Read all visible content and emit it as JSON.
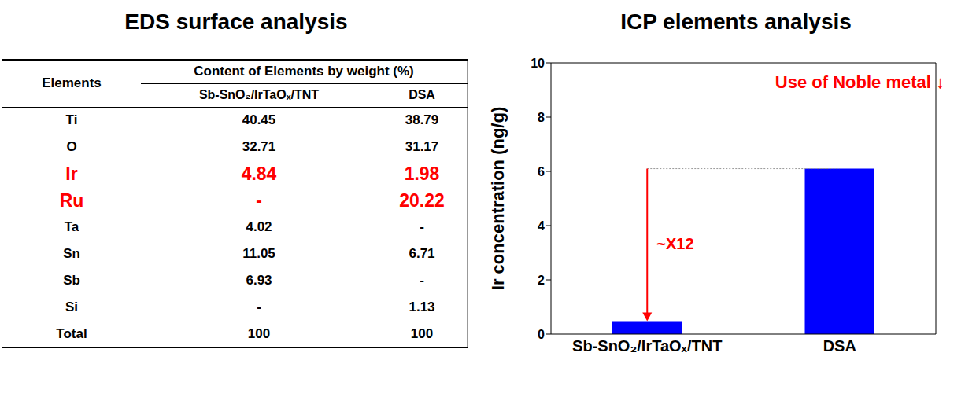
{
  "eds_table": {
    "title": "EDS surface analysis",
    "header": {
      "row_label": "Elements",
      "group": "Content of Elements by weight (%)",
      "columns": [
        "Sb-SnO₂/IrTaOₓ/TNT",
        "DSA"
      ]
    },
    "rows": [
      {
        "cells": [
          "Ti",
          "40.45",
          "38.79"
        ]
      },
      {
        "cells": [
          "O",
          "32.71",
          "31.17"
        ]
      },
      {
        "cells": [
          "Ir",
          "4.84",
          "1.98"
        ],
        "color": "#ff0000"
      },
      {
        "cells": [
          "Ru",
          "-",
          "20.22"
        ],
        "color": "#ff0000"
      },
      {
        "cells": [
          "Ta",
          "4.02",
          "-"
        ]
      },
      {
        "cells": [
          "Sn",
          "11.05",
          "6.71"
        ]
      },
      {
        "cells": [
          "Sb",
          "6.93",
          "-"
        ]
      },
      {
        "cells": [
          "Si",
          "-",
          "1.13"
        ]
      },
      {
        "cells": [
          "Total",
          "100",
          "100"
        ]
      }
    ]
  },
  "chart_data": {
    "type": "bar",
    "title": "ICP elements analysis",
    "y_label": "Ir concentration (ng/g)",
    "categories": [
      "Sb-SnO₂/IrTaOₓ/TNT",
      "DSA"
    ],
    "values": [
      0.48,
      6.1
    ],
    "color": "#0000ff",
    "ylim": [
      0,
      10
    ],
    "yticks": [
      0,
      2,
      4,
      6,
      8,
      10
    ],
    "grid": false,
    "annotations": [
      {
        "text": "Use of Noble metal ↓",
        "color": "#ff0000"
      },
      {
        "text": "~X12",
        "color": "#ff0000"
      }
    ]
  }
}
